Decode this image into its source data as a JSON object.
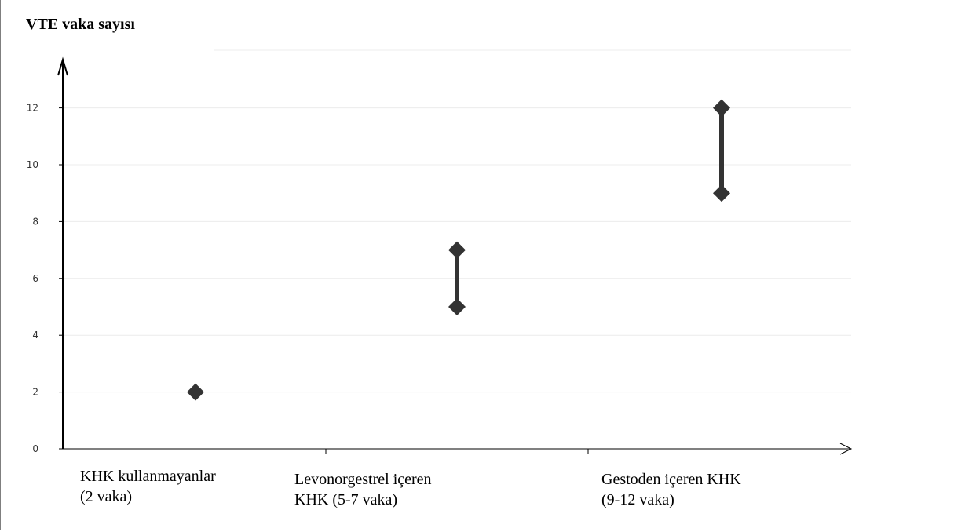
{
  "chart_data": {
    "type": "scatter",
    "ylabel": "VTE vaka sayısı",
    "xlabel": "",
    "ylim": [
      0,
      14
    ],
    "yticks": [
      0,
      2,
      4,
      6,
      8,
      10,
      12
    ],
    "grid": true,
    "categories": [
      {
        "line1": "KHK kullanmayanlar",
        "line2": "(2 vaka)"
      },
      {
        "line1": "Levonorgestrel içeren",
        "line2": "KHK (5-7 vaka)"
      },
      {
        "line1": "Gestoden içeren KHK",
        "line2": "(9-12 vaka)"
      }
    ],
    "ranges": [
      {
        "low": 2,
        "high": 2
      },
      {
        "low": 5,
        "high": 7
      },
      {
        "low": 9,
        "high": 12
      }
    ],
    "marker_color": "#333333"
  }
}
